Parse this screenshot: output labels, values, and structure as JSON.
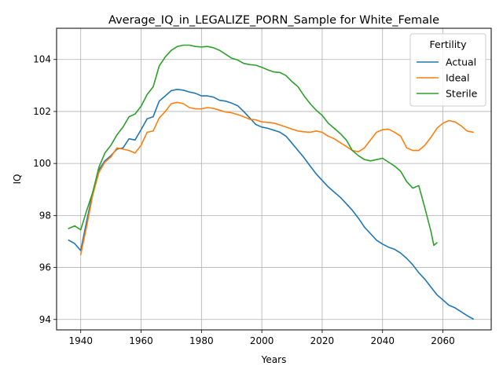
{
  "chart_data": {
    "type": "line",
    "title": "Average_IQ_in_LEGALIZE_PORN_Sample for White_Female",
    "xlabel": "Years",
    "ylabel": "IQ",
    "xlim": [
      1932,
      2076
    ],
    "ylim": [
      93.6,
      105.2
    ],
    "xticks": [
      1940,
      1960,
      1980,
      2000,
      2020,
      2040,
      2060
    ],
    "yticks": [
      94,
      96,
      98,
      100,
      102,
      104
    ],
    "grid": true,
    "legend": {
      "title": "Fertility",
      "position": "top-right"
    },
    "series": [
      {
        "name": "Actual",
        "color": "#1f77b4",
        "points": [
          [
            1936,
            97.05
          ],
          [
            1938,
            96.92
          ],
          [
            1940,
            96.65
          ],
          [
            1942,
            97.8
          ],
          [
            1944,
            98.9
          ],
          [
            1946,
            99.75
          ],
          [
            1948,
            100.1
          ],
          [
            1950,
            100.3
          ],
          [
            1952,
            100.55
          ],
          [
            1954,
            100.6
          ],
          [
            1956,
            100.95
          ],
          [
            1958,
            100.9
          ],
          [
            1960,
            101.3
          ],
          [
            1962,
            101.72
          ],
          [
            1964,
            101.8
          ],
          [
            1966,
            102.4
          ],
          [
            1968,
            102.6
          ],
          [
            1970,
            102.8
          ],
          [
            1972,
            102.85
          ],
          [
            1974,
            102.82
          ],
          [
            1976,
            102.75
          ],
          [
            1978,
            102.7
          ],
          [
            1980,
            102.6
          ],
          [
            1982,
            102.6
          ],
          [
            1984,
            102.55
          ],
          [
            1986,
            102.43
          ],
          [
            1988,
            102.4
          ],
          [
            1990,
            102.32
          ],
          [
            1992,
            102.22
          ],
          [
            1994,
            102.0
          ],
          [
            1996,
            101.75
          ],
          [
            1998,
            101.5
          ],
          [
            2000,
            101.4
          ],
          [
            2002,
            101.35
          ],
          [
            2004,
            101.28
          ],
          [
            2006,
            101.2
          ],
          [
            2008,
            101.05
          ],
          [
            2010,
            100.78
          ],
          [
            2012,
            100.5
          ],
          [
            2014,
            100.22
          ],
          [
            2016,
            99.9
          ],
          [
            2018,
            99.6
          ],
          [
            2020,
            99.35
          ],
          [
            2022,
            99.1
          ],
          [
            2024,
            98.9
          ],
          [
            2026,
            98.7
          ],
          [
            2028,
            98.45
          ],
          [
            2030,
            98.2
          ],
          [
            2032,
            97.9
          ],
          [
            2034,
            97.55
          ],
          [
            2036,
            97.3
          ],
          [
            2038,
            97.05
          ],
          [
            2040,
            96.9
          ],
          [
            2042,
            96.78
          ],
          [
            2044,
            96.7
          ],
          [
            2046,
            96.55
          ],
          [
            2048,
            96.35
          ],
          [
            2050,
            96.1
          ],
          [
            2052,
            95.8
          ],
          [
            2054,
            95.55
          ],
          [
            2056,
            95.25
          ],
          [
            2058,
            94.95
          ],
          [
            2060,
            94.75
          ],
          [
            2062,
            94.55
          ],
          [
            2064,
            94.45
          ],
          [
            2066,
            94.3
          ],
          [
            2068,
            94.15
          ],
          [
            2070,
            94.02
          ]
        ]
      },
      {
        "name": "Ideal",
        "color": "#ff7f0e",
        "points": [
          [
            1940,
            96.5
          ],
          [
            1942,
            97.6
          ],
          [
            1944,
            98.8
          ],
          [
            1946,
            99.65
          ],
          [
            1948,
            100.05
          ],
          [
            1950,
            100.25
          ],
          [
            1952,
            100.6
          ],
          [
            1954,
            100.55
          ],
          [
            1956,
            100.5
          ],
          [
            1958,
            100.4
          ],
          [
            1960,
            100.7
          ],
          [
            1962,
            101.2
          ],
          [
            1964,
            101.25
          ],
          [
            1966,
            101.75
          ],
          [
            1968,
            102.0
          ],
          [
            1970,
            102.3
          ],
          [
            1972,
            102.35
          ],
          [
            1974,
            102.3
          ],
          [
            1976,
            102.15
          ],
          [
            1978,
            102.1
          ],
          [
            1980,
            102.1
          ],
          [
            1982,
            102.15
          ],
          [
            1984,
            102.12
          ],
          [
            1986,
            102.05
          ],
          [
            1988,
            101.98
          ],
          [
            1990,
            101.95
          ],
          [
            1992,
            101.88
          ],
          [
            1994,
            101.8
          ],
          [
            1996,
            101.7
          ],
          [
            1998,
            101.68
          ],
          [
            2000,
            101.6
          ],
          [
            2002,
            101.58
          ],
          [
            2004,
            101.55
          ],
          [
            2006,
            101.48
          ],
          [
            2008,
            101.4
          ],
          [
            2010,
            101.32
          ],
          [
            2012,
            101.25
          ],
          [
            2014,
            101.22
          ],
          [
            2016,
            101.2
          ],
          [
            2018,
            101.25
          ],
          [
            2020,
            101.2
          ],
          [
            2022,
            101.05
          ],
          [
            2024,
            100.95
          ],
          [
            2026,
            100.8
          ],
          [
            2028,
            100.65
          ],
          [
            2030,
            100.5
          ],
          [
            2032,
            100.45
          ],
          [
            2034,
            100.6
          ],
          [
            2036,
            100.9
          ],
          [
            2038,
            101.2
          ],
          [
            2040,
            101.3
          ],
          [
            2042,
            101.32
          ],
          [
            2044,
            101.2
          ],
          [
            2046,
            101.05
          ],
          [
            2048,
            100.6
          ],
          [
            2050,
            100.5
          ],
          [
            2052,
            100.5
          ],
          [
            2054,
            100.7
          ],
          [
            2056,
            101.0
          ],
          [
            2058,
            101.35
          ],
          [
            2060,
            101.55
          ],
          [
            2062,
            101.65
          ],
          [
            2064,
            101.6
          ],
          [
            2066,
            101.45
          ],
          [
            2068,
            101.25
          ],
          [
            2070,
            101.2
          ]
        ]
      },
      {
        "name": "Sterile",
        "color": "#2ca02c",
        "points": [
          [
            1936,
            97.5
          ],
          [
            1938,
            97.6
          ],
          [
            1940,
            97.45
          ],
          [
            1942,
            98.2
          ],
          [
            1944,
            98.9
          ],
          [
            1946,
            99.85
          ],
          [
            1948,
            100.4
          ],
          [
            1950,
            100.7
          ],
          [
            1952,
            101.1
          ],
          [
            1954,
            101.4
          ],
          [
            1956,
            101.8
          ],
          [
            1958,
            101.9
          ],
          [
            1960,
            102.2
          ],
          [
            1962,
            102.65
          ],
          [
            1964,
            102.95
          ],
          [
            1966,
            103.75
          ],
          [
            1968,
            104.1
          ],
          [
            1970,
            104.35
          ],
          [
            1972,
            104.5
          ],
          [
            1974,
            104.55
          ],
          [
            1976,
            104.55
          ],
          [
            1978,
            104.5
          ],
          [
            1980,
            104.48
          ],
          [
            1982,
            104.5
          ],
          [
            1984,
            104.45
          ],
          [
            1986,
            104.35
          ],
          [
            1988,
            104.2
          ],
          [
            1990,
            104.05
          ],
          [
            1992,
            103.98
          ],
          [
            1994,
            103.85
          ],
          [
            1996,
            103.8
          ],
          [
            1998,
            103.78
          ],
          [
            2000,
            103.7
          ],
          [
            2002,
            103.6
          ],
          [
            2004,
            103.52
          ],
          [
            2006,
            103.5
          ],
          [
            2008,
            103.38
          ],
          [
            2010,
            103.15
          ],
          [
            2012,
            102.95
          ],
          [
            2014,
            102.6
          ],
          [
            2016,
            102.3
          ],
          [
            2018,
            102.05
          ],
          [
            2020,
            101.85
          ],
          [
            2022,
            101.55
          ],
          [
            2024,
            101.35
          ],
          [
            2026,
            101.15
          ],
          [
            2028,
            100.9
          ],
          [
            2030,
            100.5
          ],
          [
            2032,
            100.3
          ],
          [
            2034,
            100.15
          ],
          [
            2036,
            100.1
          ],
          [
            2038,
            100.15
          ],
          [
            2040,
            100.2
          ],
          [
            2042,
            100.05
          ],
          [
            2044,
            99.9
          ],
          [
            2046,
            99.7
          ],
          [
            2048,
            99.3
          ],
          [
            2050,
            99.05
          ],
          [
            2052,
            99.15
          ],
          [
            2054,
            98.3
          ],
          [
            2056,
            97.4
          ],
          [
            2057,
            96.85
          ],
          [
            2058,
            96.95
          ]
        ]
      }
    ]
  }
}
